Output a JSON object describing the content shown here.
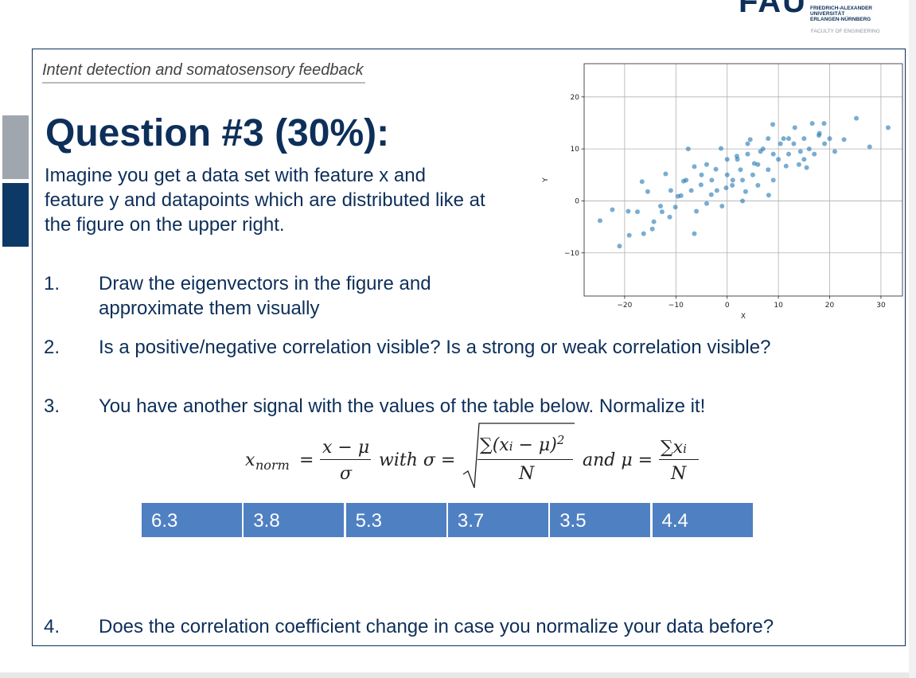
{
  "header": {
    "logo": "FAU",
    "university": [
      "FRIEDRICH-ALEXANDER",
      "UNIVERSITÄT",
      "ERLANGEN-NÜRNBERG"
    ],
    "faculty": "FACULTY OF ENGINEERING"
  },
  "subtitle": "Intent detection and somatosensory feedback",
  "title": "Question #3 (30%):",
  "intro": [
    "Imagine you get a data set with feature x and",
    "feature y and datapoints which are distributed like at",
    "the figure on the upper right."
  ],
  "questions": [
    {
      "number": "1.",
      "lines": [
        "Draw the eigenvectors in the figure and",
        "approximate them visually"
      ]
    },
    {
      "number": "2.",
      "lines": [
        "Is a positive/negative correlation visible? Is a strong or weak correlation visible?"
      ]
    },
    {
      "number": "3.",
      "lines": [
        "You have another signal with the values of the table below. Normalize it!"
      ]
    },
    {
      "number": "4.",
      "lines": [
        "Does the correlation coefficient change in case you normalize your data before?"
      ]
    }
  ],
  "formula": {
    "lhs": "x",
    "lhs_sub": "norm",
    "eq": "=",
    "frac1_num": "x − μ",
    "frac1_den": "σ",
    "with": "with σ =",
    "frac2_num": "∑(x",
    "frac2_num_sub": "i",
    "frac2_num_rest": " − μ)",
    "frac2_num_sup": "2",
    "frac2_den": "N",
    "and": "and μ =",
    "frac3_num": "∑x",
    "frac3_num_sub": "i",
    "frac3_den": "N"
  },
  "table": {
    "rows": [
      [
        6.3,
        3.8,
        5.3,
        3.7,
        3.5,
        4.4
      ]
    ]
  },
  "chart_data": {
    "type": "scatter",
    "xlabel": "X",
    "ylabel": "Y",
    "color": "#1f77b4",
    "grid": true,
    "xlim": [
      -27.9,
      34.2
    ],
    "ylim": [
      -18.3,
      26.4
    ],
    "xticks": [
      {
        "value": -20,
        "label": "−20"
      },
      {
        "value": -10,
        "label": "−10"
      },
      0,
      10,
      20,
      30
    ],
    "yticks": [
      {
        "value": -10,
        "label": "−10"
      },
      0,
      10,
      20
    ],
    "x": [
      -24.8,
      -22.4,
      -21,
      -19.1,
      -16.3,
      -19.3,
      -17.5,
      -16.6,
      -15.5,
      -14.6,
      -14.3,
      -12.7,
      -12,
      -11.2,
      -10.1,
      -9.6,
      -8.5,
      -7.6,
      -6.4,
      -6.4,
      -5.1,
      -4,
      -3.1,
      -2.2,
      -1.2,
      -0.2,
      1.1,
      1.9,
      2.6,
      3.6,
      4.5,
      5.3,
      6.5,
      8.1,
      8.9,
      10.4,
      11.5,
      13.2,
      14.3,
      15.5,
      16.6,
      17.9,
      18.9,
      21,
      22.8,
      25.2,
      27.8,
      31.4,
      -7,
      -5,
      -3,
      -2,
      0,
      1,
      2,
      3,
      4,
      5,
      6,
      7,
      8,
      9,
      10,
      11,
      12,
      13,
      14,
      15,
      16,
      17,
      18,
      19,
      20,
      -9,
      -11,
      -13,
      -6,
      -1,
      3,
      6,
      9,
      12,
      15,
      -8,
      -4,
      0,
      4,
      8
    ],
    "values": [
      -3.8,
      -1.7,
      -8.7,
      -6.6,
      -6.3,
      -2,
      -2.1,
      3.7,
      1.8,
      -5.4,
      -4,
      -2.1,
      5.2,
      -3.1,
      -1.2,
      0.9,
      3.8,
      10,
      -6.3,
      6.6,
      3.1,
      -0.5,
      1.2,
      6.1,
      10.1,
      2.5,
      4,
      8.6,
      6,
      1.8,
      11.8,
      7.2,
      9.5,
      1.1,
      14.7,
      11,
      6.7,
      14.1,
      9.5,
      6.4,
      14.9,
      12.6,
      14.9,
      9.5,
      11.8,
      15.9,
      10.4,
      14.1,
      2,
      5,
      4,
      2,
      5,
      3,
      8,
      4,
      9,
      5,
      7,
      10,
      6,
      9,
      8,
      12,
      9,
      11,
      7,
      12,
      10,
      9,
      13,
      11,
      12,
      1,
      2,
      -1,
      -2,
      -1,
      0,
      3,
      4,
      12,
      8,
      4,
      7,
      8,
      11,
      12
    ]
  }
}
